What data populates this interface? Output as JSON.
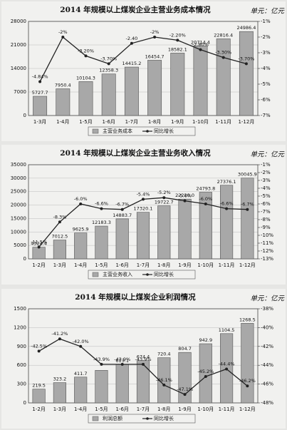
{
  "chart_data": [
    {
      "type": "bar",
      "title": "2014 年规模以上煤炭企业主营业务成本情况",
      "unit": "单元：亿元",
      "categories": [
        "1-3月",
        "1-4月",
        "1-5月",
        "1-6月",
        "1-7月",
        "1-8月",
        "1-9月",
        "1-10月",
        "1-11月",
        "1-12月"
      ],
      "series": [
        {
          "name": "主营业务成本",
          "type": "bar",
          "color": "#a8a8a8",
          "values": [
            5727.7,
            7950.4,
            10104.3,
            12358.3,
            14415.2,
            16454.7,
            18582.1,
            20714.4,
            22816.4,
            24986.4
          ],
          "value_labels": [
            "5727.7",
            "7950.4",
            "10104.3",
            "12358.3",
            "14415.2",
            "16454.7",
            "18582.1",
            "20714.4",
            "22816.4",
            "24986.4"
          ]
        },
        {
          "name": "同比增长",
          "type": "line",
          "axis": "y2",
          "color": "#222222",
          "values": [
            -4.84,
            -2,
            -3.2,
            -3.7,
            -2.4,
            -2,
            -2.2,
            -2.8,
            -3.3,
            -3.7
          ],
          "value_labels": [
            "-4.84%",
            "-2%",
            "-3.20%",
            "-3.70%",
            "-2.40",
            "-2%",
            "-2.20%",
            "-2.80%",
            "-3.30%",
            "-3.70%"
          ]
        }
      ],
      "ylim": [
        0,
        28000
      ],
      "yticks": [
        0,
        7000,
        14000,
        21000,
        28000
      ],
      "y2lim": [
        -7,
        -1
      ],
      "y2ticks": [
        {
          "value": -7,
          "label": "-7%"
        },
        {
          "value": -6,
          "label": "-6%"
        },
        {
          "value": -5,
          "label": "-5%"
        },
        {
          "value": -4,
          "label": "-4%"
        },
        {
          "value": -3,
          "label": "-3%"
        },
        {
          "value": -2,
          "label": "-2%"
        },
        {
          "value": -1,
          "label": "-1%"
        }
      ],
      "grid": true
    },
    {
      "type": "bar",
      "title": "2014 年规模以上煤炭企业主营业务收入情况",
      "unit": "单元：亿元",
      "categories": [
        "1-2月",
        "1-3月",
        "1-4月",
        "1-5月",
        "1-6月",
        "1-7月",
        "1-8月",
        "1-9月",
        "1-10月",
        "1-11月",
        "1-12月"
      ],
      "series": [
        {
          "name": "主营业务收入",
          "type": "bar",
          "color": "#a8a8a8",
          "values": [
            4324.4,
            7012.5,
            9625.9,
            12183.3,
            14883.7,
            17320.1,
            19722.7,
            22220.0,
            24793.8,
            27376.1,
            30045.9
          ],
          "value_labels": [
            "4324.4",
            "7012.5",
            "9625.9",
            "12183.3",
            "14883.7",
            "17320.1",
            "19722.7",
            "22220.0",
            "24793.8",
            "27376.1",
            "30045.9"
          ]
        },
        {
          "name": "同比增长",
          "type": "line",
          "axis": "y2",
          "color": "#222222",
          "values": [
            -11.5,
            -8.3,
            -6.0,
            -6.6,
            -6.7,
            -5.4,
            -5.2,
            -5.6,
            -6.0,
            -6.6,
            -6.7
          ],
          "value_labels": [
            "-11.5%",
            "-8.3%",
            "-6.0%",
            "-6.6%",
            "-6.7%",
            "-5.4%",
            "-5.2%",
            "-5.6%",
            "-6.0%",
            "-6.6%",
            "-6.7%"
          ]
        }
      ],
      "ylim": [
        0,
        35000
      ],
      "yticks": [
        0,
        5000,
        10000,
        15000,
        20000,
        25000,
        30000,
        35000
      ],
      "y2lim": [
        -13,
        -1
      ],
      "y2ticks": [
        {
          "value": -13,
          "label": "-13%"
        },
        {
          "value": -12,
          "label": "-12%"
        },
        {
          "value": -11,
          "label": "-11%"
        },
        {
          "value": -10,
          "label": "-10%"
        },
        {
          "value": -9,
          "label": "-9%"
        },
        {
          "value": -8,
          "label": "-8%"
        },
        {
          "value": -7,
          "label": "-7%"
        },
        {
          "value": -6,
          "label": "-6%"
        },
        {
          "value": -5,
          "label": "-5%"
        },
        {
          "value": -4,
          "label": "-4%"
        },
        {
          "value": -3,
          "label": "-3%"
        },
        {
          "value": -2,
          "label": "-2%"
        },
        {
          "value": -1,
          "label": "-1%"
        }
      ],
      "grid": true
    },
    {
      "type": "bar",
      "title": "2014 年规模以上煤炭企业利润情况",
      "unit": "单元：亿元",
      "categories": [
        "1-2月",
        "1-3月",
        "1-4月",
        "1-5月",
        "1-6月",
        "1-7月",
        "1-8月",
        "1-9月",
        "1-10月",
        "1-11月",
        "1-12月"
      ],
      "series": [
        {
          "name": "利润总额",
          "type": "bar",
          "color": "#a8a8a8",
          "values": [
            219.5,
            323.2,
            411.7,
            518.6,
            613.1,
            674.4,
            720.4,
            804.7,
            942.9,
            1104.5,
            1268.5
          ],
          "value_labels": [
            "219.5",
            "323.2",
            "411.7",
            null,
            "613.1",
            "674.4",
            "720.4",
            "804.7",
            "942.9",
            "1104.5",
            "1268.5"
          ]
        },
        {
          "name": "同比增长",
          "type": "line",
          "axis": "y2",
          "color": "#222222",
          "values": [
            -42.5,
            -41.2,
            -42.0,
            -43.9,
            -43.9,
            -43.9,
            -46.1,
            -47.1,
            -45.2,
            -44.4,
            -46.2
          ],
          "value_labels": [
            "-42.5%",
            "-41.2%",
            "-42.0%",
            "-43.9%",
            "-43.9%",
            "-43.9%",
            "-46.1%",
            "-47.1%",
            "-45.2%",
            "-44.4%",
            "-46.2%"
          ]
        }
      ],
      "ylim": [
        0,
        1500
      ],
      "yticks": [
        0,
        300,
        600,
        900,
        1200,
        1500
      ],
      "y2lim": [
        -48,
        -38
      ],
      "y2ticks": [
        {
          "value": -48,
          "label": "-48%"
        },
        {
          "value": -46,
          "label": "-46%"
        },
        {
          "value": -44,
          "label": "-44%"
        },
        {
          "value": -42,
          "label": "-42%"
        },
        {
          "value": -40,
          "label": "-40%"
        },
        {
          "value": -38,
          "label": "-38%"
        }
      ],
      "grid": true
    }
  ]
}
